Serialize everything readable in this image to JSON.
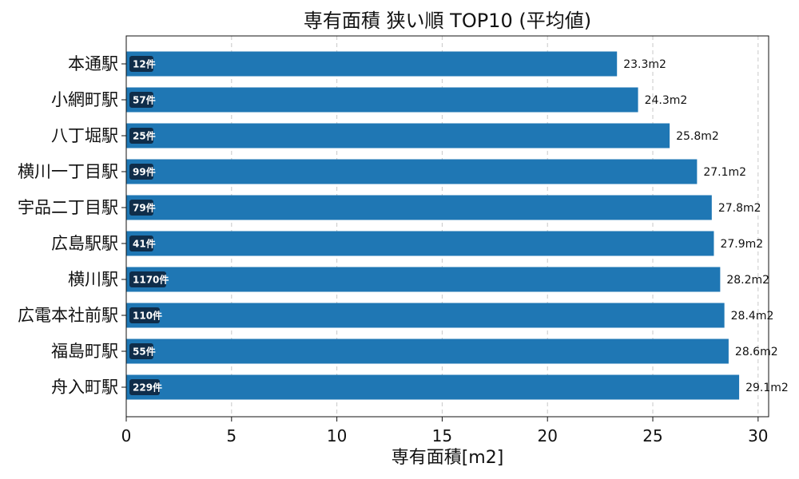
{
  "chart_data": {
    "type": "bar",
    "orientation": "horizontal",
    "title": "専有面積 狭い順 TOP10 (平均値)",
    "xlabel": "専有面積[m2]",
    "ylabel": "",
    "xlim": [
      0,
      30.5
    ],
    "xticks": [
      0,
      5,
      10,
      15,
      20,
      25,
      30
    ],
    "grid": "x-dashed",
    "bar_color": "#1f77b4",
    "count_badge_color": "#0f2d4a",
    "categories": [
      "本通駅",
      "小網町駅",
      "八丁堀駅",
      "横川一丁目駅",
      "宇品二丁目駅",
      "広島駅駅",
      "横川駅",
      "広電本社前駅",
      "福島町駅",
      "舟入町駅"
    ],
    "values": [
      23.3,
      24.3,
      25.8,
      27.1,
      27.8,
      27.9,
      28.2,
      28.4,
      28.6,
      29.1
    ],
    "value_labels": [
      "23.3m2",
      "24.3m2",
      "25.8m2",
      "27.1m2",
      "27.8m2",
      "27.9m2",
      "28.2m2",
      "28.4m2",
      "28.6m2",
      "29.1m2"
    ],
    "counts": [
      "12件",
      "57件",
      "25件",
      "99件",
      "79件",
      "41件",
      "1170件",
      "110件",
      "55件",
      "229件"
    ]
  }
}
